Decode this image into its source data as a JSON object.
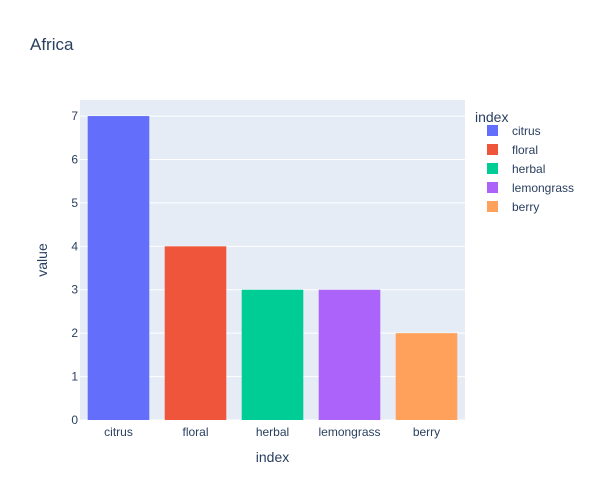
{
  "chart_data": {
    "type": "bar",
    "title": "Africa",
    "xlabel": "index",
    "ylabel": "value",
    "categories": [
      "citrus",
      "floral",
      "herbal",
      "lemongrass",
      "berry"
    ],
    "values": [
      7,
      4,
      3,
      3,
      2
    ],
    "colors": [
      "#636efa",
      "#EF553B",
      "#00cc96",
      "#ab63fa",
      "#FFA15A"
    ],
    "ylim": [
      0,
      7.37
    ],
    "yticks": [
      0,
      1,
      2,
      3,
      4,
      5,
      6,
      7
    ],
    "grid": true,
    "plot_background": "#E5ECF6",
    "legend": {
      "title": "index",
      "position": "top-right",
      "entries": [
        "citrus",
        "floral",
        "herbal",
        "lemongrass",
        "berry"
      ]
    }
  }
}
